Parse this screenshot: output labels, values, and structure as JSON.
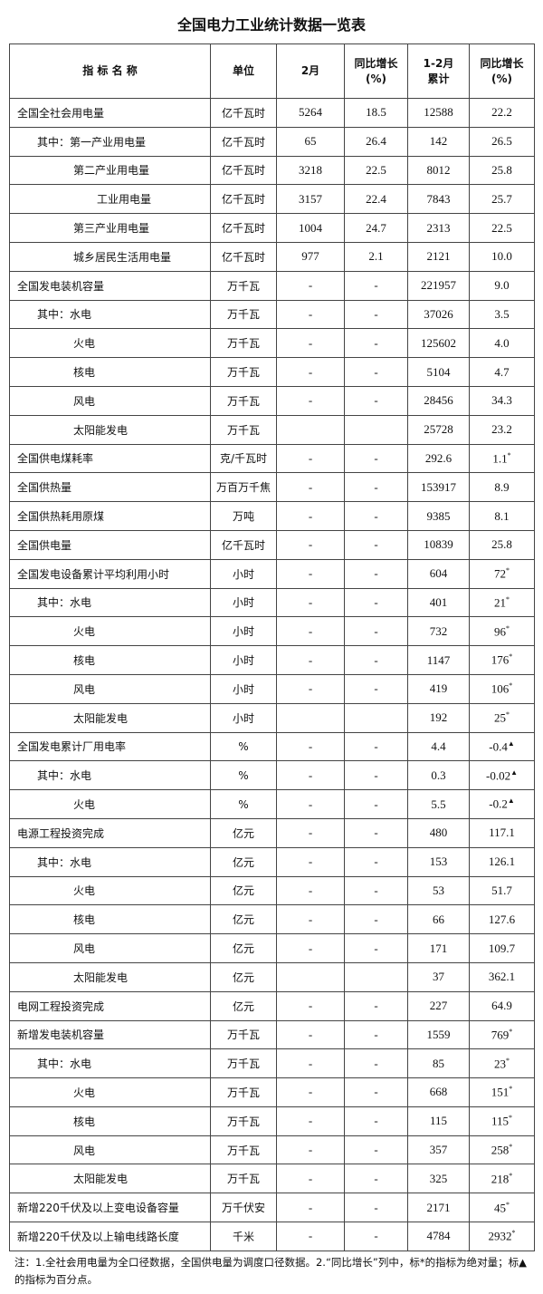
{
  "title": "全国电力工业统计数据一览表",
  "table": {
    "header": [
      [
        "指 标 名 称"
      ],
      [
        "单位"
      ],
      [
        "2月"
      ],
      [
        "同比增长",
        "(%)"
      ],
      [
        "1-2月",
        "累计"
      ],
      [
        "同比增长",
        "(%)"
      ]
    ],
    "rows": [
      {
        "name": "全国全社会用电量",
        "unit": "亿千瓦时",
        "feb": "5264",
        "feb_yoy": "18.5",
        "cum": "12588",
        "cum_yoy": "22.2"
      },
      {
        "name": "其中：第一产业用电量",
        "unit": "亿千瓦时",
        "feb": "65",
        "feb_yoy": "26.4",
        "cum": "142",
        "cum_yoy": "26.5"
      },
      {
        "name": "第二产业用电量",
        "unit": "亿千瓦时",
        "feb": "3218",
        "feb_yoy": "22.5",
        "cum": "8012",
        "cum_yoy": "25.8"
      },
      {
        "name": "工业用电量",
        "unit": "亿千瓦时",
        "feb": "3157",
        "feb_yoy": "22.4",
        "cum": "7843",
        "cum_yoy": "25.7"
      },
      {
        "name": "第三产业用电量",
        "unit": "亿千瓦时",
        "feb": "1004",
        "feb_yoy": "24.7",
        "cum": "2313",
        "cum_yoy": "22.5"
      },
      {
        "name": "城乡居民生活用电量",
        "unit": "亿千瓦时",
        "feb": "977",
        "feb_yoy": "2.1",
        "cum": "2121",
        "cum_yoy": "10.0"
      },
      {
        "name": "全国发电装机容量",
        "unit": "万千瓦",
        "feb": "-",
        "feb_yoy": "-",
        "cum": "221957",
        "cum_yoy": "9.0"
      },
      {
        "name": "其中：水电",
        "unit": "万千瓦",
        "feb": "-",
        "feb_yoy": "-",
        "cum": "37026",
        "cum_yoy": "3.5"
      },
      {
        "name": "火电",
        "unit": "万千瓦",
        "feb": "-",
        "feb_yoy": "-",
        "cum": "125602",
        "cum_yoy": "4.0"
      },
      {
        "name": "核电",
        "unit": "万千瓦",
        "feb": "-",
        "feb_yoy": "-",
        "cum": "5104",
        "cum_yoy": "4.7"
      },
      {
        "name": "风电",
        "unit": "万千瓦",
        "feb": "-",
        "feb_yoy": "-",
        "cum": "28456",
        "cum_yoy": "34.3"
      },
      {
        "name": "太阳能发电",
        "unit": "万千瓦",
        "feb": null,
        "feb_yoy": null,
        "cum": "25728",
        "cum_yoy": "23.2"
      },
      {
        "name": "全国供电煤耗率",
        "unit": "克/千瓦时",
        "feb": "-",
        "feb_yoy": "-",
        "cum": "292.6",
        "cum_yoy": "1.1",
        "mark": "*"
      },
      {
        "name": "全国供热量",
        "unit": "万百万千焦",
        "feb": "-",
        "feb_yoy": "-",
        "cum": "153917",
        "cum_yoy": "8.9"
      },
      {
        "name": "全国供热耗用原煤",
        "unit": "万吨",
        "feb": "-",
        "feb_yoy": "-",
        "cum": "9385",
        "cum_yoy": "8.1"
      },
      {
        "name": "全国供电量",
        "unit": "亿千瓦时",
        "feb": "-",
        "feb_yoy": "-",
        "cum": "10839",
        "cum_yoy": "25.8"
      },
      {
        "name": "全国发电设备累计平均利用小时",
        "unit": "小时",
        "feb": "-",
        "feb_yoy": "-",
        "cum": "604",
        "cum_yoy": "72",
        "mark": "*"
      },
      {
        "name": "其中：水电",
        "unit": "小时",
        "feb": "-",
        "feb_yoy": "-",
        "cum": "401",
        "cum_yoy": "21",
        "mark": "*"
      },
      {
        "name": "火电",
        "unit": "小时",
        "feb": "-",
        "feb_yoy": "-",
        "cum": "732",
        "cum_yoy": "96",
        "mark": "*"
      },
      {
        "name": "核电",
        "unit": "小时",
        "feb": "-",
        "feb_yoy": "-",
        "cum": "1147",
        "cum_yoy": "176",
        "mark": "*"
      },
      {
        "name": "风电",
        "unit": "小时",
        "feb": "-",
        "feb_yoy": "-",
        "cum": "419",
        "cum_yoy": "106",
        "mark": "*"
      },
      {
        "name": "太阳能发电",
        "unit": "小时",
        "feb": null,
        "feb_yoy": null,
        "cum": "192",
        "cum_yoy": "25",
        "mark": "*"
      },
      {
        "name": "全国发电累计厂用电率",
        "unit": "%",
        "feb": "-",
        "feb_yoy": "-",
        "cum": "4.4",
        "cum_yoy": "-0.4",
        "mark": "▲"
      },
      {
        "name": "其中：水电",
        "unit": "%",
        "feb": "-",
        "feb_yoy": "-",
        "cum": "0.3",
        "cum_yoy": "-0.02",
        "mark": "▲"
      },
      {
        "name": "火电",
        "unit": "%",
        "feb": "-",
        "feb_yoy": "-",
        "cum": "5.5",
        "cum_yoy": "-0.2",
        "mark": "▲"
      },
      {
        "name": "电源工程投资完成",
        "unit": "亿元",
        "feb": "-",
        "feb_yoy": "-",
        "cum": "480",
        "cum_yoy": "117.1"
      },
      {
        "name": "其中：水电",
        "unit": "亿元",
        "feb": "-",
        "feb_yoy": "-",
        "cum": "153",
        "cum_yoy": "126.1"
      },
      {
        "name": "火电",
        "unit": "亿元",
        "feb": "-",
        "feb_yoy": "-",
        "cum": "53",
        "cum_yoy": "51.7"
      },
      {
        "name": "核电",
        "unit": "亿元",
        "feb": "-",
        "feb_yoy": "-",
        "cum": "66",
        "cum_yoy": "127.6"
      },
      {
        "name": "风电",
        "unit": "亿元",
        "feb": "-",
        "feb_yoy": "-",
        "cum": "171",
        "cum_yoy": "109.7"
      },
      {
        "name": "太阳能发电",
        "unit": "亿元",
        "feb": null,
        "feb_yoy": null,
        "cum": "37",
        "cum_yoy": "362.1"
      },
      {
        "name": "电网工程投资完成",
        "unit": "亿元",
        "feb": "-",
        "feb_yoy": "-",
        "cum": "227",
        "cum_yoy": "64.9"
      },
      {
        "name": "新增发电装机容量",
        "unit": "万千瓦",
        "feb": "-",
        "feb_yoy": "-",
        "cum": "1559",
        "cum_yoy": "769",
        "mark": "*"
      },
      {
        "name": "其中：水电",
        "unit": "万千瓦",
        "feb": "-",
        "feb_yoy": "-",
        "cum": "85",
        "cum_yoy": "23",
        "mark": "*"
      },
      {
        "name": "火电",
        "unit": "万千瓦",
        "feb": "-",
        "feb_yoy": "-",
        "cum": "668",
        "cum_yoy": "151",
        "mark": "*"
      },
      {
        "name": "核电",
        "unit": "万千瓦",
        "feb": "-",
        "feb_yoy": "-",
        "cum": "115",
        "cum_yoy": "115",
        "mark": "*"
      },
      {
        "name": "风电",
        "unit": "万千瓦",
        "feb": "-",
        "feb_yoy": "-",
        "cum": "357",
        "cum_yoy": "258",
        "mark": "*"
      },
      {
        "name": "太阳能发电",
        "unit": "万千瓦",
        "feb": "-",
        "feb_yoy": "-",
        "cum": "325",
        "cum_yoy": "218",
        "mark": "*"
      },
      {
        "name": "新增220千伏及以上变电设备容量",
        "unit": "万千伏安",
        "feb": "-",
        "feb_yoy": "-",
        "cum": "2171",
        "cum_yoy": "45",
        "mark": "*"
      },
      {
        "name": "新增220千伏及以上输电线路长度",
        "unit": "千米",
        "feb": "-",
        "feb_yoy": "-",
        "cum": "4784",
        "cum_yoy": "2932",
        "mark": "*"
      }
    ]
  },
  "note": "注：1.全社会用电量为全口径数据，全国供电量为调度口径数据。2.“同比增长”列中，标*的指标为绝对量；标▲的指标为百分点。"
}
